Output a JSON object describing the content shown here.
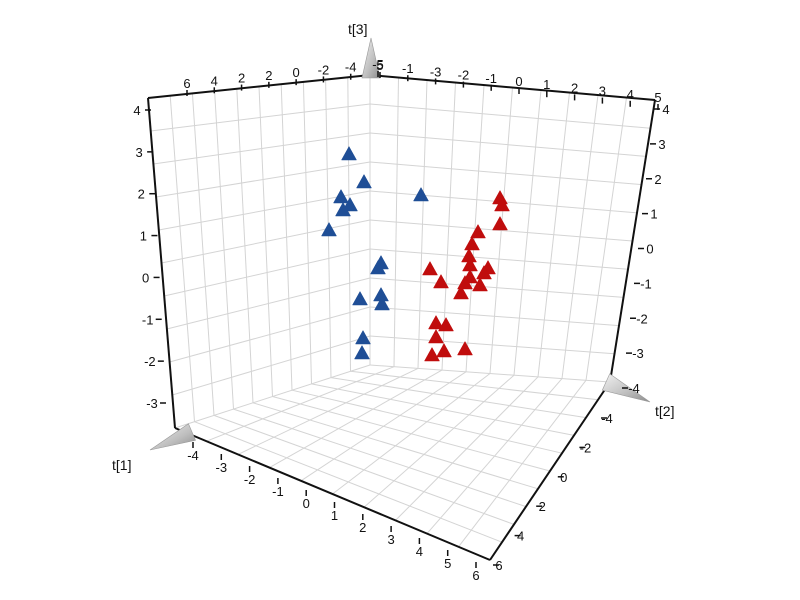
{
  "chart_data": {
    "type": "scatter",
    "subtype": "3d-scatter",
    "xlabel": "t[1]",
    "ylabel": "t[2]",
    "zlabel": "t[3]",
    "grid": true,
    "legend": "none",
    "colors": {
      "group_a": "#1f4e96",
      "group_b": "#c00d0d"
    },
    "ticks": {
      "t1_front": [
        "-4",
        "-3",
        "-2",
        "-1",
        "0",
        "1",
        "2",
        "3",
        "4",
        "5",
        "6"
      ],
      "t1_top": [
        "-5",
        "-4",
        "-2",
        "0",
        "2",
        "2",
        "4",
        "6"
      ],
      "t2_front": [
        "-4",
        "-2",
        "0",
        "2",
        "4",
        "6"
      ],
      "t2_top": [
        "5",
        "-1",
        "-3",
        "-2",
        "-1",
        "0",
        "1",
        "2",
        "3",
        "4",
        "5"
      ],
      "t3_left": [
        "4",
        "3",
        "2",
        "1",
        "0",
        "-1",
        "-2",
        "-3"
      ],
      "t3_right": [
        "4",
        "3",
        "2",
        "1",
        "0",
        "-1",
        "-2",
        "-3",
        "-4"
      ]
    },
    "series": [
      {
        "points": [
          [
            349,
            154
          ],
          [
            364,
            182
          ],
          [
            341,
            197
          ],
          [
            350,
            205
          ],
          [
            343,
            210
          ],
          [
            421,
            195
          ],
          [
            329,
            230
          ],
          [
            381,
            263
          ],
          [
            378,
            268
          ],
          [
            360,
            299
          ],
          [
            381,
            295
          ],
          [
            382,
            304
          ],
          [
            363,
            338
          ],
          [
            362,
            353
          ]
        ]
      },
      {
        "points": [
          [
            500,
            198
          ],
          [
            502,
            205
          ],
          [
            478,
            232
          ],
          [
            500,
            224
          ],
          [
            472,
            244
          ],
          [
            469,
            256
          ],
          [
            470,
            265
          ],
          [
            488,
            268
          ],
          [
            484,
            273
          ],
          [
            470,
            277
          ],
          [
            430,
            269
          ],
          [
            465,
            283
          ],
          [
            480,
            285
          ],
          [
            441,
            282
          ],
          [
            461,
            293
          ],
          [
            436,
            323
          ],
          [
            446,
            325
          ],
          [
            436,
            337
          ],
          [
            444,
            351
          ],
          [
            432,
            355
          ],
          [
            465,
            349
          ]
        ]
      }
    ]
  }
}
